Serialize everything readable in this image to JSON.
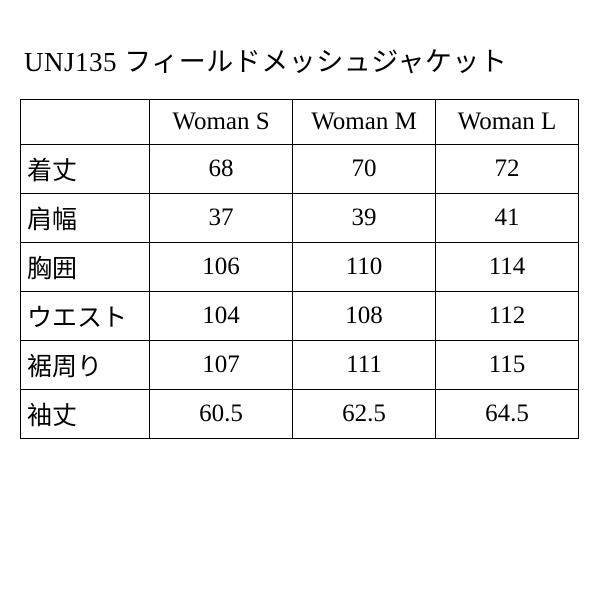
{
  "title": "UNJ135 フィールドメッシュジャケット",
  "table": {
    "columns": [
      "Woman S",
      "Woman M",
      "Woman L"
    ],
    "rows": [
      {
        "label": "着丈",
        "values": [
          "68",
          "70",
          "72"
        ]
      },
      {
        "label": "肩幅",
        "values": [
          "37",
          "39",
          "41"
        ]
      },
      {
        "label": "胸囲",
        "values": [
          "106",
          "110",
          "114"
        ]
      },
      {
        "label": "ウエスト",
        "values": [
          "104",
          "108",
          "112"
        ]
      },
      {
        "label": "裾周り",
        "values": [
          "107",
          "111",
          "115"
        ]
      },
      {
        "label": "袖丈",
        "values": [
          "60.5",
          "62.5",
          "64.5"
        ]
      }
    ],
    "border_color": "#000000",
    "background_color": "#ffffff",
    "text_color": "#000000",
    "title_fontsize": 27,
    "cell_fontsize": 25,
    "label_col_width": 118,
    "value_col_width": 134
  }
}
